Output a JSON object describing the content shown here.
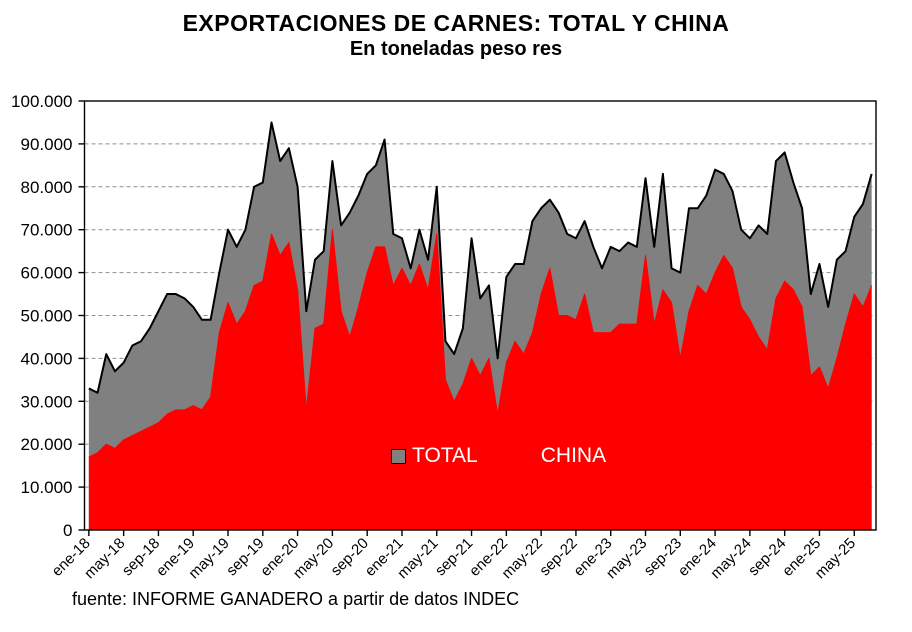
{
  "title": "EXPORTACIONES DE CARNES: TOTAL Y CHINA",
  "subtitle": "En toneladas peso res",
  "source": "fuente: INFORME GANADERO a partir de datos INDEC",
  "legend": {
    "total_label": "TOTAL",
    "china_label": "CHINA"
  },
  "colors": {
    "background": "#FFFFFF",
    "total_fill": "#808080",
    "total_line": "#000000",
    "china_fill": "#FF0000",
    "gridline": "#909090",
    "axis": "#000000"
  },
  "chart_data": {
    "type": "area",
    "overlapping": true,
    "title": "EXPORTACIONES DE CARNES: TOTAL Y CHINA",
    "subtitle": "En toneladas peso res",
    "xlabel": "",
    "ylabel": "",
    "ylim": [
      0,
      100000
    ],
    "y_tick_step": 10000,
    "y_tick_labels": [
      "0",
      "10.000",
      "20.000",
      "30.000",
      "40.000",
      "50.000",
      "60.000",
      "70.000",
      "80.000",
      "90.000",
      "100.000"
    ],
    "grid": "horizontal-dashed",
    "legend_position": "inside-center",
    "x": [
      "ene-18",
      "feb-18",
      "mar-18",
      "abr-18",
      "may-18",
      "jun-18",
      "jul-18",
      "ago-18",
      "sep-18",
      "oct-18",
      "nov-18",
      "dic-18",
      "ene-19",
      "feb-19",
      "mar-19",
      "abr-19",
      "may-19",
      "jun-19",
      "jul-19",
      "ago-19",
      "sep-19",
      "oct-19",
      "nov-19",
      "dic-19",
      "ene-20",
      "feb-20",
      "mar-20",
      "abr-20",
      "may-20",
      "jun-20",
      "jul-20",
      "ago-20",
      "sep-20",
      "oct-20",
      "nov-20",
      "dic-20",
      "ene-21",
      "feb-21",
      "mar-21",
      "abr-21",
      "may-21",
      "jun-21",
      "jul-21",
      "ago-21",
      "sep-21",
      "oct-21",
      "nov-21",
      "dic-21",
      "ene-22",
      "feb-22",
      "mar-22",
      "abr-22",
      "may-22",
      "jun-22",
      "jul-22",
      "ago-22",
      "sep-22",
      "oct-22",
      "nov-22",
      "dic-22",
      "ene-23",
      "feb-23",
      "mar-23",
      "abr-23",
      "may-23",
      "jun-23",
      "jul-23",
      "ago-23",
      "sep-23",
      "oct-23",
      "nov-23",
      "dic-23",
      "ene-24",
      "feb-24",
      "mar-24",
      "abr-24",
      "may-24",
      "jun-24",
      "jul-24",
      "ago-24",
      "sep-24",
      "oct-24",
      "nov-24",
      "dic-24",
      "ene-25",
      "feb-25",
      "mar-25",
      "abr-25",
      "may-25",
      "jun-25",
      "jul-25"
    ],
    "x_tick_labels": [
      "ene-18",
      "may-18",
      "sep-18",
      "ene-19",
      "may-19",
      "sep-19",
      "ene-20",
      "may-20",
      "sep-20",
      "ene-21",
      "may-21",
      "sep-21",
      "ene-22",
      "may-22",
      "sep-22",
      "ene-23",
      "may-23",
      "sep-23",
      "ene-24",
      "may-24",
      "sep-24",
      "ene-25",
      "may-25"
    ],
    "x_tick_every": 4,
    "series": [
      {
        "name": "TOTAL",
        "fill": "#808080",
        "line": "#000000",
        "values": [
          33000,
          32000,
          41000,
          37000,
          39000,
          43000,
          44000,
          47000,
          51000,
          55000,
          55000,
          54000,
          52000,
          49000,
          49000,
          60000,
          70000,
          66000,
          70000,
          80000,
          81000,
          95000,
          86000,
          89000,
          80000,
          51000,
          63000,
          65000,
          86000,
          71000,
          74000,
          78000,
          83000,
          85000,
          91000,
          69000,
          68000,
          61000,
          70000,
          63000,
          80000,
          44000,
          41000,
          47000,
          68000,
          54000,
          57000,
          40000,
          59000,
          62000,
          62000,
          72000,
          75000,
          77000,
          74000,
          69000,
          68000,
          72000,
          66000,
          61000,
          66000,
          65000,
          67000,
          66000,
          82000,
          66000,
          83000,
          61000,
          60000,
          75000,
          75000,
          78000,
          84000,
          83000,
          79000,
          70000,
          68000,
          71000,
          69000,
          86000,
          88000,
          81000,
          75000,
          55000,
          62000,
          52000,
          63000,
          65000,
          73000,
          76000,
          83000
        ]
      },
      {
        "name": "CHINA",
        "fill": "#FF0000",
        "line": "#FF0000",
        "values": [
          17000,
          18000,
          20000,
          19000,
          21000,
          22000,
          23000,
          24000,
          25000,
          27000,
          28000,
          28000,
          29000,
          28000,
          31000,
          46000,
          53000,
          48000,
          51000,
          57000,
          58000,
          69000,
          64000,
          67000,
          56000,
          28000,
          47000,
          48000,
          70000,
          51000,
          45000,
          52000,
          60000,
          66000,
          66000,
          57000,
          61000,
          57000,
          62000,
          56000,
          69000,
          35000,
          30000,
          34000,
          40000,
          36000,
          40000,
          27000,
          39000,
          44000,
          41000,
          46000,
          55000,
          61000,
          50000,
          50000,
          49000,
          55000,
          46000,
          46000,
          46000,
          48000,
          48000,
          48000,
          64000,
          48000,
          56000,
          53000,
          40000,
          51000,
          57000,
          55000,
          60000,
          64000,
          61000,
          52000,
          49000,
          45000,
          42000,
          54000,
          58000,
          56000,
          52000,
          36000,
          38000,
          33000,
          40000,
          48000,
          55000,
          52000,
          57000
        ]
      }
    ]
  }
}
